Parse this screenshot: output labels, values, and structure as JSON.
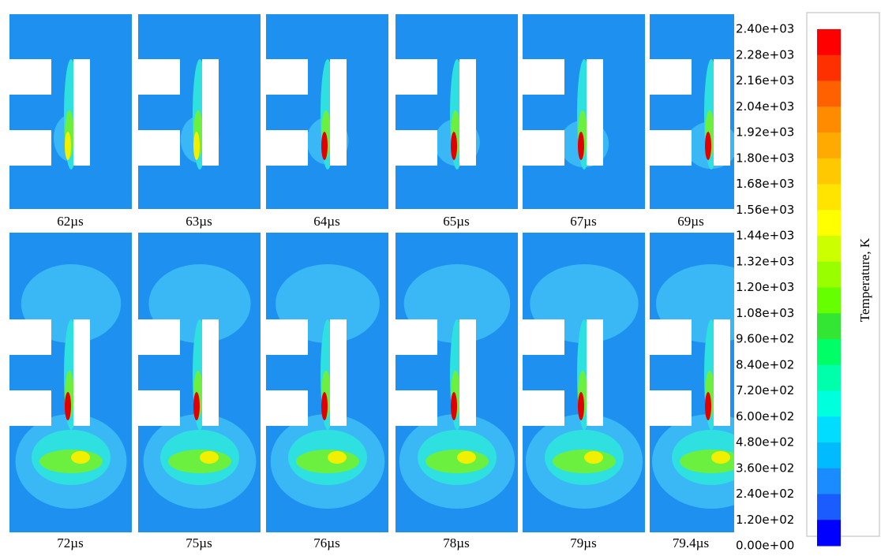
{
  "panels": [
    {
      "label": "62µs"
    },
    {
      "label": "63µs"
    },
    {
      "label": "64µs"
    },
    {
      "label": "65µs"
    },
    {
      "label": "67µs"
    },
    {
      "label": "69µs"
    },
    {
      "label": "72µs"
    },
    {
      "label": "75µs"
    },
    {
      "label": "76µs"
    },
    {
      "label": "78µs"
    },
    {
      "label": "79µs"
    },
    {
      "label": "79.4µs"
    }
  ],
  "colorbar": {
    "title": "Temperature, K",
    "ticks": [
      "2.40e+03",
      "2.28e+03",
      "2.16e+03",
      "2.04e+03",
      "1.92e+03",
      "1.80e+03",
      "1.68e+03",
      "1.56e+03",
      "1.44e+03",
      "1.32e+03",
      "1.20e+03",
      "1.08e+03",
      "9.60e+02",
      "8.40e+02",
      "7.20e+02",
      "6.00e+02",
      "4.80e+02",
      "3.60e+02",
      "2.40e+02",
      "1.20e+02",
      "0.00e+00"
    ]
  }
}
